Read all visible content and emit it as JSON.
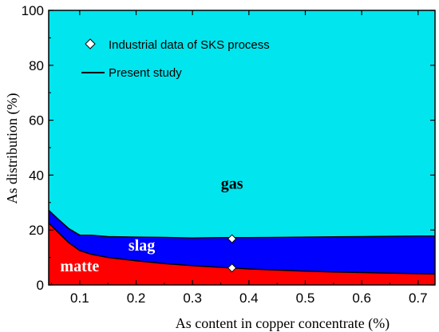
{
  "chart_data": {
    "type": "area",
    "xlabel": "As content in copper concentrate (%)",
    "ylabel": "As distribution (%)",
    "xlim": [
      0.045,
      0.73
    ],
    "ylim": [
      0,
      100
    ],
    "x_ticks": [
      0.1,
      0.2,
      0.3,
      0.4,
      0.5,
      0.6,
      0.7
    ],
    "y_ticks": [
      0,
      20,
      40,
      60,
      80,
      100
    ],
    "x": [
      0.045,
      0.06,
      0.08,
      0.1,
      0.12,
      0.15,
      0.2,
      0.25,
      0.3,
      0.35,
      0.4,
      0.45,
      0.5,
      0.55,
      0.6,
      0.65,
      0.7,
      0.73
    ],
    "series": [
      {
        "name": "matte",
        "color": "#ff0000",
        "values": [
          22.5,
          19.5,
          15.5,
          12.5,
          11.2,
          10.0,
          8.8,
          7.8,
          7.0,
          6.4,
          5.8,
          5.4,
          5.0,
          4.7,
          4.5,
          4.3,
          4.1,
          4.0
        ]
      },
      {
        "name": "slag",
        "color": "#0000ff",
        "values": [
          4.7,
          4.8,
          5.1,
          5.6,
          6.9,
          7.6,
          8.6,
          9.5,
          10.1,
          10.8,
          11.4,
          11.9,
          12.4,
          12.8,
          13.1,
          13.4,
          13.7,
          13.8
        ]
      },
      {
        "name": "gas",
        "color": "#00e5ee",
        "values": [
          72.8,
          75.7,
          79.4,
          81.9,
          81.9,
          82.4,
          82.6,
          82.7,
          82.9,
          82.8,
          82.8,
          82.7,
          82.6,
          82.5,
          82.4,
          82.3,
          82.2,
          82.2
        ]
      }
    ],
    "boundaries": [
      [
        22.5,
        19.5,
        15.5,
        12.5,
        11.2,
        10.0,
        8.8,
        7.8,
        7.0,
        6.4,
        5.8,
        5.4,
        5.0,
        4.7,
        4.5,
        4.3,
        4.1,
        4.0
      ],
      [
        27.2,
        24.3,
        20.6,
        18.1,
        18.1,
        17.6,
        17.4,
        17.3,
        17.1,
        17.2,
        17.2,
        17.3,
        17.4,
        17.5,
        17.6,
        17.7,
        17.8,
        17.8
      ]
    ],
    "industrial_points": [
      {
        "x": 0.37,
        "y": 6.2
      },
      {
        "x": 0.37,
        "y": 16.8
      }
    ],
    "region_labels": [
      {
        "text": "gas",
        "x": 0.37,
        "y": 35,
        "color": "#000000"
      },
      {
        "text": "slag",
        "x": 0.21,
        "y": 12.5,
        "color": "#ffffff"
      },
      {
        "text": "matte",
        "x": 0.1,
        "y": 5,
        "color": "#ffffff"
      }
    ],
    "legend": [
      {
        "label": "Industrial data of SKS process",
        "marker": "diamond"
      },
      {
        "label": "Present study",
        "marker": "line"
      }
    ],
    "legend_position": "top-left",
    "grid": false
  }
}
